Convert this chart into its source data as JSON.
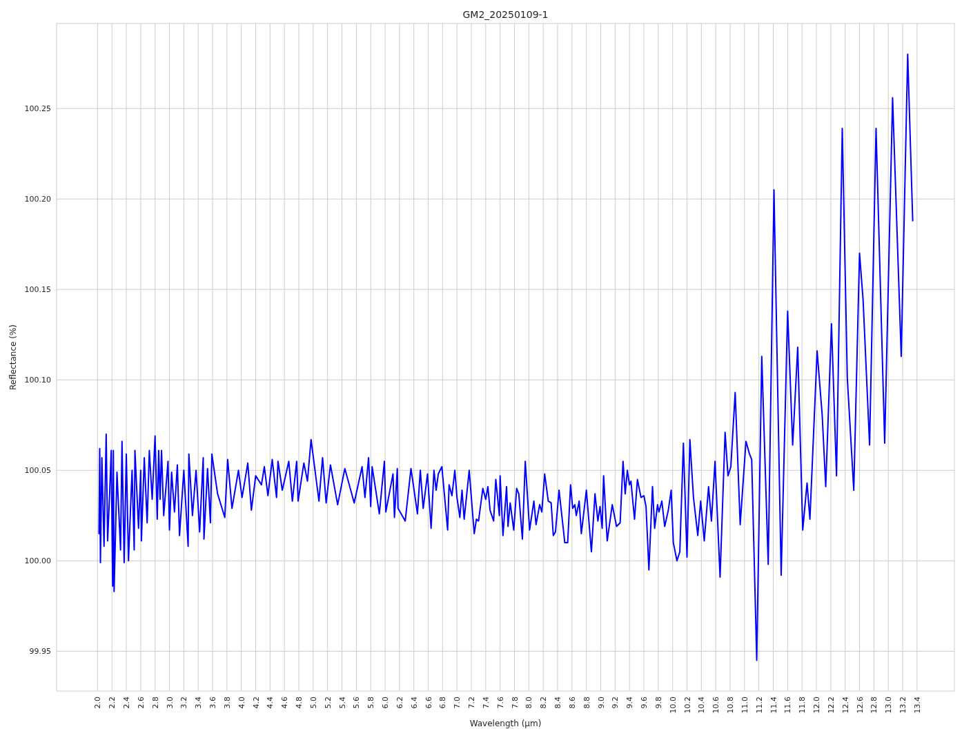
{
  "chart_data": {
    "type": "line",
    "title": "GM2_20250109-1",
    "xlabel": "Wavelength (µm)",
    "ylabel": "Reflectance (%)",
    "xlim": [
      1.43,
      13.92
    ],
    "ylim": [
      99.928,
      100.297
    ],
    "xticks": [
      {
        "value": 2.0,
        "label": "2.0"
      },
      {
        "value": 2.2,
        "label": "2.2"
      },
      {
        "value": 2.4,
        "label": "2.4"
      },
      {
        "value": 2.6,
        "label": "2.6"
      },
      {
        "value": 2.8,
        "label": "2.8"
      },
      {
        "value": 3.0,
        "label": "3.0"
      },
      {
        "value": 3.2,
        "label": "3.2"
      },
      {
        "value": 3.4,
        "label": "3.4"
      },
      {
        "value": 3.6,
        "label": "3.6"
      },
      {
        "value": 3.8,
        "label": "3.8"
      },
      {
        "value": 4.0,
        "label": "4.0"
      },
      {
        "value": 4.2,
        "label": "4.2"
      },
      {
        "value": 4.4,
        "label": "4.4"
      },
      {
        "value": 4.6,
        "label": "4.6"
      },
      {
        "value": 4.8,
        "label": "4.8"
      },
      {
        "value": 5.0,
        "label": "5.0"
      },
      {
        "value": 5.2,
        "label": "5.2"
      },
      {
        "value": 5.4,
        "label": "5.4"
      },
      {
        "value": 5.6,
        "label": "5.6"
      },
      {
        "value": 5.8,
        "label": "5.8"
      },
      {
        "value": 6.0,
        "label": "6.0"
      },
      {
        "value": 6.2,
        "label": "6.2"
      },
      {
        "value": 6.4,
        "label": "6.4"
      },
      {
        "value": 6.6,
        "label": "6.6"
      },
      {
        "value": 6.8,
        "label": "6.8"
      },
      {
        "value": 7.0,
        "label": "7.0"
      },
      {
        "value": 7.2,
        "label": "7.2"
      },
      {
        "value": 7.4,
        "label": "7.4"
      },
      {
        "value": 7.6,
        "label": "7.6"
      },
      {
        "value": 7.8,
        "label": "7.8"
      },
      {
        "value": 8.0,
        "label": "8.0"
      },
      {
        "value": 8.2,
        "label": "8.2"
      },
      {
        "value": 8.4,
        "label": "8.4"
      },
      {
        "value": 8.6,
        "label": "8.6"
      },
      {
        "value": 8.8,
        "label": "8.8"
      },
      {
        "value": 9.0,
        "label": "9.0"
      },
      {
        "value": 9.2,
        "label": "9.2"
      },
      {
        "value": 9.4,
        "label": "9.4"
      },
      {
        "value": 9.6,
        "label": "9.6"
      },
      {
        "value": 9.8,
        "label": "9.8"
      },
      {
        "value": 10.0,
        "label": "10.0"
      },
      {
        "value": 10.2,
        "label": "10.2"
      },
      {
        "value": 10.4,
        "label": "10.4"
      },
      {
        "value": 10.6,
        "label": "10.6"
      },
      {
        "value": 10.8,
        "label": "10.8"
      },
      {
        "value": 11.0,
        "label": "11.0"
      },
      {
        "value": 11.2,
        "label": "11.2"
      },
      {
        "value": 11.4,
        "label": "11.4"
      },
      {
        "value": 11.6,
        "label": "11.6"
      },
      {
        "value": 11.8,
        "label": "11.8"
      },
      {
        "value": 12.0,
        "label": "12.0"
      },
      {
        "value": 12.2,
        "label": "12.2"
      },
      {
        "value": 12.4,
        "label": "12.4"
      },
      {
        "value": 12.6,
        "label": "12.6"
      },
      {
        "value": 12.8,
        "label": "12.8"
      },
      {
        "value": 13.0,
        "label": "13.0"
      },
      {
        "value": 13.2,
        "label": "13.2"
      },
      {
        "value": 13.4,
        "label": "13.4"
      }
    ],
    "yticks": [
      {
        "value": 99.95,
        "label": "99.95"
      },
      {
        "value": 100.0,
        "label": "100.00"
      },
      {
        "value": 100.05,
        "label": "100.05"
      },
      {
        "value": 100.1,
        "label": "100.10"
      },
      {
        "value": 100.15,
        "label": "100.15"
      },
      {
        "value": 100.2,
        "label": "100.20"
      },
      {
        "value": 100.25,
        "label": "100.25"
      }
    ],
    "grid": true,
    "marker": "none",
    "line_style": "solid",
    "series": [
      {
        "color": "#0000ff",
        "x": [
          2.02,
          2.03,
          2.04,
          2.06,
          2.09,
          2.12,
          2.14,
          2.17,
          2.19,
          2.21,
          2.22,
          2.23,
          2.27,
          2.32,
          2.34,
          2.37,
          2.4,
          2.43,
          2.48,
          2.51,
          2.52,
          2.57,
          2.6,
          2.61,
          2.65,
          2.69,
          2.72,
          2.76,
          2.8,
          2.83,
          2.85,
          2.87,
          2.89,
          2.92,
          2.98,
          3.0,
          3.03,
          3.07,
          3.11,
          3.14,
          3.2,
          3.26,
          3.27,
          3.32,
          3.37,
          3.42,
          3.47,
          3.48,
          3.53,
          3.57,
          3.59,
          3.67,
          3.77,
          3.81,
          3.87,
          3.96,
          4.01,
          4.09,
          4.14,
          4.2,
          4.28,
          4.32,
          4.37,
          4.43,
          4.49,
          4.51,
          4.57,
          4.66,
          4.71,
          4.77,
          4.79,
          4.87,
          4.92,
          4.97,
          5.08,
          5.13,
          5.18,
          5.24,
          5.34,
          5.44,
          5.57,
          5.68,
          5.72,
          5.77,
          5.8,
          5.82,
          5.92,
          5.99,
          6.01,
          6.11,
          6.13,
          6.17,
          6.18,
          6.28,
          6.36,
          6.45,
          6.49,
          6.53,
          6.59,
          6.64,
          6.68,
          6.71,
          6.74,
          6.79,
          6.87,
          6.89,
          6.93,
          6.97,
          7.0,
          7.04,
          7.07,
          7.1,
          7.17,
          7.2,
          7.24,
          7.27,
          7.3,
          7.36,
          7.4,
          7.43,
          7.46,
          7.51,
          7.54,
          7.59,
          7.6,
          7.64,
          7.69,
          7.71,
          7.74,
          7.79,
          7.83,
          7.86,
          7.91,
          7.95,
          8.01,
          8.07,
          8.1,
          8.15,
          8.18,
          8.22,
          8.27,
          8.31,
          8.34,
          8.37,
          8.42,
          8.5,
          8.54,
          8.58,
          8.61,
          8.64,
          8.66,
          8.7,
          8.73,
          8.8,
          8.87,
          8.92,
          8.96,
          8.99,
          9.02,
          9.04,
          9.09,
          9.16,
          9.22,
          9.27,
          9.31,
          9.34,
          9.37,
          9.4,
          9.42,
          9.47,
          9.51,
          9.56,
          9.6,
          9.63,
          9.67,
          9.72,
          9.75,
          9.79,
          9.81,
          9.85,
          9.89,
          9.94,
          9.98,
          10.01,
          10.06,
          10.1,
          10.15,
          10.2,
          10.24,
          10.29,
          10.35,
          10.39,
          10.44,
          10.5,
          10.54,
          10.59,
          10.66,
          10.73,
          10.77,
          10.81,
          10.87,
          10.94,
          11.02,
          11.07,
          11.1,
          11.17,
          11.24,
          11.33,
          11.41,
          11.51,
          11.6,
          11.67,
          11.74,
          11.81,
          11.87,
          11.91,
          12.01,
          12.08,
          12.13,
          12.21,
          12.28,
          12.36,
          12.43,
          12.52,
          12.6,
          12.65,
          12.74,
          12.83,
          12.95,
          13.06,
          13.18,
          13.27,
          13.34
        ],
        "values": [
          100.015,
          100.062,
          99.999,
          100.057,
          100.008,
          100.07,
          100.011,
          100.039,
          100.061,
          99.986,
          100.061,
          99.983,
          100.049,
          100.006,
          100.066,
          99.999,
          100.059,
          100.0,
          100.05,
          100.006,
          100.061,
          100.018,
          100.05,
          100.011,
          100.057,
          100.021,
          100.061,
          100.034,
          100.069,
          100.023,
          100.061,
          100.034,
          100.061,
          100.025,
          100.055,
          100.017,
          100.049,
          100.027,
          100.053,
          100.014,
          100.05,
          100.008,
          100.059,
          100.025,
          100.05,
          100.016,
          100.057,
          100.012,
          100.051,
          100.021,
          100.059,
          100.037,
          100.024,
          100.056,
          100.029,
          100.05,
          100.035,
          100.054,
          100.028,
          100.047,
          100.042,
          100.052,
          100.036,
          100.056,
          100.035,
          100.055,
          100.039,
          100.055,
          100.033,
          100.055,
          100.033,
          100.054,
          100.044,
          100.067,
          100.033,
          100.057,
          100.032,
          100.053,
          100.031,
          100.051,
          100.032,
          100.052,
          100.035,
          100.057,
          100.03,
          100.052,
          100.026,
          100.055,
          100.027,
          100.048,
          100.024,
          100.051,
          100.029,
          100.022,
          100.051,
          100.026,
          100.05,
          100.029,
          100.048,
          100.018,
          100.05,
          100.039,
          100.048,
          100.052,
          100.017,
          100.042,
          100.036,
          100.05,
          100.035,
          100.024,
          100.039,
          100.023,
          100.05,
          100.035,
          100.015,
          100.023,
          100.022,
          100.04,
          100.034,
          100.041,
          100.028,
          100.022,
          100.045,
          100.025,
          100.047,
          100.014,
          100.041,
          100.019,
          100.032,
          100.017,
          100.04,
          100.037,
          100.012,
          100.055,
          100.017,
          100.033,
          100.02,
          100.031,
          100.027,
          100.048,
          100.033,
          100.032,
          100.014,
          100.016,
          100.039,
          100.01,
          100.01,
          100.042,
          100.029,
          100.031,
          100.025,
          100.033,
          100.015,
          100.039,
          100.005,
          100.037,
          100.022,
          100.03,
          100.018,
          100.047,
          100.011,
          100.031,
          100.019,
          100.021,
          100.055,
          100.037,
          100.05,
          100.042,
          100.044,
          100.023,
          100.045,
          100.035,
          100.036,
          100.03,
          99.995,
          100.041,
          100.018,
          100.031,
          100.027,
          100.033,
          100.019,
          100.028,
          100.039,
          100.01,
          100.0,
          100.005,
          100.065,
          100.002,
          100.067,
          100.035,
          100.014,
          100.033,
          100.011,
          100.041,
          100.022,
          100.055,
          99.991,
          100.071,
          100.047,
          100.052,
          100.093,
          100.02,
          100.066,
          100.059,
          100.056,
          99.945,
          100.113,
          99.998,
          100.205,
          99.992,
          100.138,
          100.064,
          100.118,
          100.017,
          100.043,
          100.023,
          100.116,
          100.081,
          100.041,
          100.131,
          100.047,
          100.239,
          100.101,
          100.039,
          100.17,
          100.144,
          100.064,
          100.239,
          100.065,
          100.256,
          100.113,
          100.28,
          100.188
        ]
      }
    ]
  }
}
